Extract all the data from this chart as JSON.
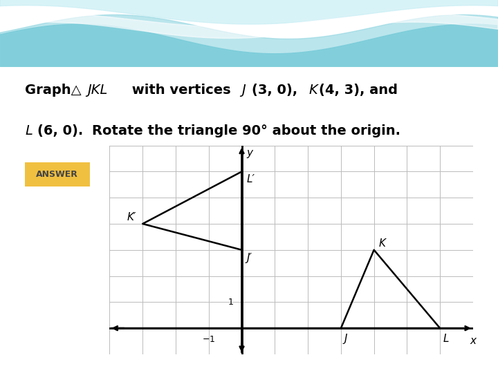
{
  "title_line1_parts": [
    {
      "text": "Graph",
      "bold": true,
      "italic": false
    },
    {
      "text": "△",
      "bold": false,
      "italic": false
    },
    {
      "text": " JKL",
      "bold": false,
      "italic": true
    },
    {
      "text": " with vertices ",
      "bold": true,
      "italic": false
    },
    {
      "text": "J",
      "bold": false,
      "italic": true
    },
    {
      "text": "(3, 0), ",
      "bold": true,
      "italic": false
    },
    {
      "text": "K",
      "bold": false,
      "italic": true
    },
    {
      "text": "(4, 3), and",
      "bold": true,
      "italic": false
    }
  ],
  "title_line2_parts": [
    {
      "text": "L",
      "bold": false,
      "italic": true
    },
    {
      "text": "(6, 0). ",
      "bold": true,
      "italic": false
    },
    {
      "text": "Rotate the triangle 90° about the origin.",
      "bold": true,
      "italic": false
    }
  ],
  "answer_label": "ANSWER",
  "original_triangle": {
    "J": [
      3,
      0
    ],
    "K": [
      4,
      3
    ],
    "L": [
      6,
      0
    ]
  },
  "rotated_triangle_90ccw": {
    "J_prime": [
      0,
      3
    ],
    "K_prime": [
      -3,
      4
    ],
    "L_prime": [
      0,
      6
    ]
  },
  "xlim": [
    -4,
    7
  ],
  "ylim": [
    -1,
    7
  ],
  "grid_color": "#bbbbbb",
  "axis_color": "#000000",
  "triangle_color": "#000000",
  "bg_color": "#ffffff",
  "answer_bg": "#f0c040",
  "wave_bg": "#d8f0f5",
  "wave_c1": "#5bbfcf",
  "wave_c2": "#8dd4e0",
  "wave_c3": "#b0e2ec",
  "font_size_title": 14,
  "font_size_answer": 9,
  "label_fontsize": 11,
  "yellow_strip": "#f0e050"
}
